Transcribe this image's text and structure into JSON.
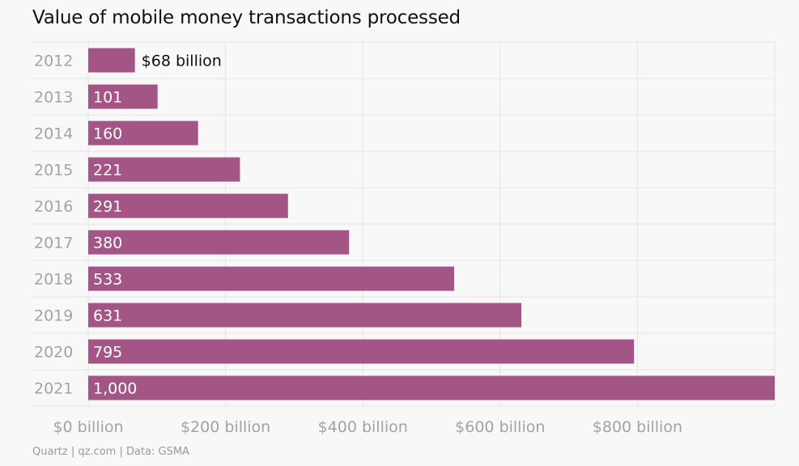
{
  "title": "Value of mobile money transactions processed",
  "source": "Quartz | qz.com | Data: GSMA",
  "colors": {
    "bar": "#a35685",
    "grid": "#e4e4e4",
    "tick_text": "#a3a3a3",
    "label_inside": "#ffffff",
    "label_outside": "#111111"
  },
  "chart_data": {
    "type": "bar",
    "orientation": "horizontal",
    "categories": [
      "2012",
      "2013",
      "2014",
      "2015",
      "2016",
      "2017",
      "2018",
      "2019",
      "2020",
      "2021"
    ],
    "values": [
      68,
      101,
      160,
      221,
      291,
      380,
      533,
      631,
      795,
      1000
    ],
    "data_labels": [
      "$68 billion",
      "101",
      "160",
      "221",
      "291",
      "380",
      "533",
      "631",
      "795",
      "1,000"
    ],
    "xlim": [
      0,
      1000
    ],
    "x_ticks": [
      0,
      200,
      400,
      600,
      800
    ],
    "x_tick_labels": [
      "$0 billion",
      "$200 billion",
      "$400 billion",
      "$600 billion",
      "$800 billion"
    ],
    "grid": true,
    "legend": "none"
  }
}
